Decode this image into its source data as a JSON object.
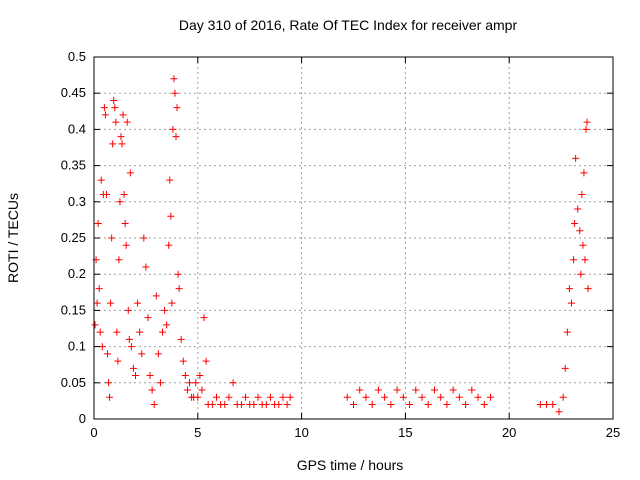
{
  "chart_data": {
    "type": "scatter",
    "title": "Day 310 of 2016, Rate Of TEC Index for receiver ampr",
    "xlabel": "GPS time / hours",
    "ylabel": "ROTI / TECUs",
    "xlim": [
      0,
      25
    ],
    "ylim": [
      0,
      0.5
    ],
    "x_ticks": [
      "0",
      "5",
      "10",
      "15",
      "20",
      "25"
    ],
    "y_ticks": [
      "0",
      "0.05",
      "0.1",
      "0.15",
      "0.2",
      "0.25",
      "0.3",
      "0.35",
      "0.4",
      "0.45",
      "0.5"
    ],
    "grid": true,
    "marker": "+",
    "marker_color": "#ff0000",
    "series": [
      {
        "points": [
          [
            0.05,
            0.13
          ],
          [
            0.1,
            0.22
          ],
          [
            0.15,
            0.16
          ],
          [
            0.2,
            0.27
          ],
          [
            0.25,
            0.18
          ],
          [
            0.3,
            0.12
          ],
          [
            0.35,
            0.33
          ],
          [
            0.4,
            0.1
          ],
          [
            0.45,
            0.31
          ],
          [
            0.5,
            0.43
          ],
          [
            0.55,
            0.42
          ],
          [
            0.6,
            0.31
          ],
          [
            0.65,
            0.09
          ],
          [
            0.7,
            0.05
          ],
          [
            0.75,
            0.03
          ],
          [
            0.8,
            0.16
          ],
          [
            0.85,
            0.25
          ],
          [
            0.9,
            0.38
          ],
          [
            0.95,
            0.44
          ],
          [
            1.0,
            0.43
          ],
          [
            1.05,
            0.41
          ],
          [
            1.1,
            0.12
          ],
          [
            1.15,
            0.08
          ],
          [
            1.2,
            0.22
          ],
          [
            1.25,
            0.3
          ],
          [
            1.3,
            0.39
          ],
          [
            1.35,
            0.38
          ],
          [
            1.4,
            0.42
          ],
          [
            1.45,
            0.31
          ],
          [
            1.5,
            0.27
          ],
          [
            1.55,
            0.24
          ],
          [
            1.6,
            0.41
          ],
          [
            1.65,
            0.15
          ],
          [
            1.7,
            0.11
          ],
          [
            1.75,
            0.34
          ],
          [
            1.8,
            0.1
          ],
          [
            1.9,
            0.07
          ],
          [
            2.0,
            0.06
          ],
          [
            2.1,
            0.16
          ],
          [
            2.2,
            0.12
          ],
          [
            2.3,
            0.09
          ],
          [
            2.4,
            0.25
          ],
          [
            2.5,
            0.21
          ],
          [
            2.6,
            0.14
          ],
          [
            2.7,
            0.06
          ],
          [
            2.8,
            0.04
          ],
          [
            2.9,
            0.02
          ],
          [
            3.0,
            0.17
          ],
          [
            3.1,
            0.09
          ],
          [
            3.2,
            0.05
          ],
          [
            3.3,
            0.12
          ],
          [
            3.4,
            0.15
          ],
          [
            3.5,
            0.13
          ],
          [
            3.6,
            0.24
          ],
          [
            3.65,
            0.33
          ],
          [
            3.7,
            0.28
          ],
          [
            3.75,
            0.16
          ],
          [
            3.8,
            0.4
          ],
          [
            3.85,
            0.47
          ],
          [
            3.9,
            0.45
          ],
          [
            3.95,
            0.39
          ],
          [
            4.0,
            0.43
          ],
          [
            4.05,
            0.2
          ],
          [
            4.1,
            0.18
          ],
          [
            4.2,
            0.11
          ],
          [
            4.3,
            0.08
          ],
          [
            4.4,
            0.06
          ],
          [
            4.5,
            0.04
          ],
          [
            4.6,
            0.05
          ],
          [
            4.7,
            0.03
          ],
          [
            4.8,
            0.03
          ],
          [
            4.9,
            0.05
          ],
          [
            5.0,
            0.03
          ],
          [
            5.1,
            0.06
          ],
          [
            5.2,
            0.04
          ],
          [
            5.3,
            0.14
          ],
          [
            5.4,
            0.08
          ],
          [
            5.5,
            0.02
          ],
          [
            5.7,
            0.02
          ],
          [
            5.9,
            0.03
          ],
          [
            6.1,
            0.02
          ],
          [
            6.3,
            0.02
          ],
          [
            6.5,
            0.03
          ],
          [
            6.7,
            0.05
          ],
          [
            6.9,
            0.02
          ],
          [
            7.1,
            0.02
          ],
          [
            7.3,
            0.03
          ],
          [
            7.5,
            0.02
          ],
          [
            7.7,
            0.02
          ],
          [
            7.9,
            0.03
          ],
          [
            8.1,
            0.02
          ],
          [
            8.3,
            0.02
          ],
          [
            8.5,
            0.03
          ],
          [
            8.7,
            0.02
          ],
          [
            8.9,
            0.02
          ],
          [
            9.1,
            0.03
          ],
          [
            9.3,
            0.02
          ],
          [
            9.45,
            0.03
          ],
          [
            12.2,
            0.03
          ],
          [
            12.5,
            0.02
          ],
          [
            12.8,
            0.04
          ],
          [
            13.1,
            0.03
          ],
          [
            13.4,
            0.02
          ],
          [
            13.7,
            0.04
          ],
          [
            14.0,
            0.03
          ],
          [
            14.3,
            0.02
          ],
          [
            14.6,
            0.04
          ],
          [
            14.9,
            0.03
          ],
          [
            15.2,
            0.02
          ],
          [
            15.5,
            0.04
          ],
          [
            15.8,
            0.03
          ],
          [
            16.1,
            0.02
          ],
          [
            16.4,
            0.04
          ],
          [
            16.7,
            0.03
          ],
          [
            17.0,
            0.02
          ],
          [
            17.3,
            0.04
          ],
          [
            17.6,
            0.03
          ],
          [
            17.9,
            0.02
          ],
          [
            18.2,
            0.04
          ],
          [
            18.5,
            0.03
          ],
          [
            18.8,
            0.02
          ],
          [
            19.1,
            0.03
          ],
          [
            21.5,
            0.02
          ],
          [
            21.8,
            0.02
          ],
          [
            22.1,
            0.02
          ],
          [
            22.4,
            0.01
          ],
          [
            22.6,
            0.03
          ],
          [
            22.7,
            0.07
          ],
          [
            22.8,
            0.12
          ],
          [
            22.9,
            0.18
          ],
          [
            23.0,
            0.16
          ],
          [
            23.1,
            0.22
          ],
          [
            23.15,
            0.27
          ],
          [
            23.2,
            0.36
          ],
          [
            23.3,
            0.29
          ],
          [
            23.4,
            0.26
          ],
          [
            23.45,
            0.2
          ],
          [
            23.5,
            0.31
          ],
          [
            23.55,
            0.24
          ],
          [
            23.6,
            0.34
          ],
          [
            23.65,
            0.22
          ],
          [
            23.7,
            0.4
          ],
          [
            23.75,
            0.41
          ],
          [
            23.8,
            0.18
          ]
        ]
      }
    ]
  }
}
